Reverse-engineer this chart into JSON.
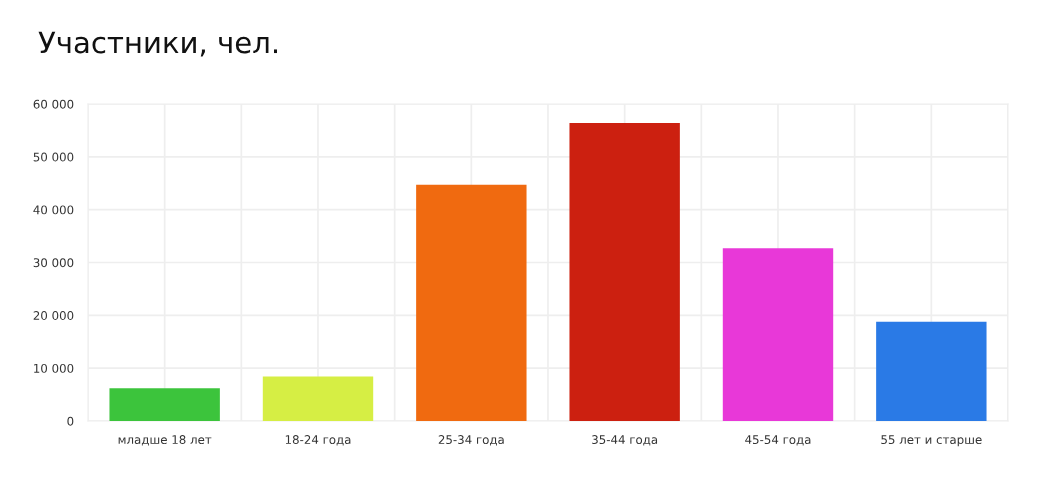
{
  "chart_data": {
    "type": "bar",
    "title": "Участники, чел.",
    "categories": [
      "младше 18 лет",
      "18-24 года",
      "25-34 года",
      "35-44 года",
      "45-54 года",
      "55 лет и старше"
    ],
    "values": [
      6200,
      8400,
      44700,
      56400,
      32700,
      18800
    ],
    "colors": [
      "#3cc43c",
      "#d6ee44",
      "#f06a10",
      "#cc2010",
      "#e838d8",
      "#2a7ae6"
    ],
    "ylim": [
      0,
      60000
    ],
    "yticks": [
      {
        "value": 0,
        "label": "0"
      },
      {
        "value": 10000,
        "label": "10 000"
      },
      {
        "value": 20000,
        "label": "20 000"
      },
      {
        "value": 30000,
        "label": "30 000"
      },
      {
        "value": 40000,
        "label": "40 000"
      },
      {
        "value": 50000,
        "label": "50 000"
      },
      {
        "value": 60000,
        "label": "60 000"
      }
    ],
    "grid": true
  }
}
